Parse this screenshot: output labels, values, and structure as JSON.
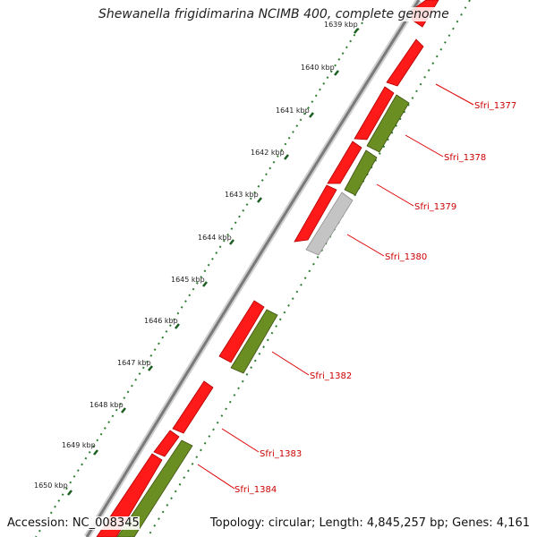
{
  "title": "Shewanella frigidimarina NCIMB 400, complete genome",
  "accession": "Accession: NC_008345",
  "topology": "Topology: circular; Length: 4,845,257 bp; Genes: 4,161",
  "colors": {
    "forward_gene": "#ff0000",
    "reverse_gene": "#6b8e23",
    "other_gene": "#c0c0c0",
    "backbone": "#8a8a8a",
    "tick_major": "#2e7d32",
    "tick_minor": "#4caf50",
    "label": "#cc0000"
  },
  "ruler": {
    "faded_label": "1639 kbp",
    "labels": [
      "1640 kbp",
      "1641 kbp",
      "1642 kbp",
      "1643 kbp",
      "1644 kbp",
      "1645 kbp",
      "1646 kbp",
      "1647 kbp",
      "1648 kbp",
      "1649 kbp",
      "1650 kbp"
    ]
  },
  "gene_labels": [
    "Sfri_1377",
    "Sfri_1378",
    "Sfri_1379",
    "Sfri_1380",
    "Sfri_1382",
    "Sfri_1383",
    "Sfri_1384"
  ]
}
